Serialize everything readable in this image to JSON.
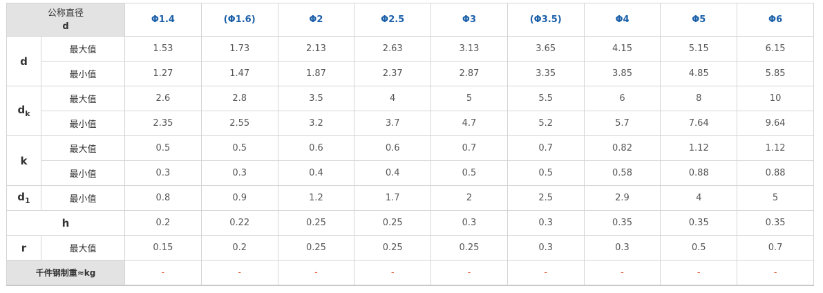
{
  "header": {
    "corner_label": "公称直径",
    "corner_symbol": "d",
    "sizes": [
      "Φ1.4",
      "(Φ1.6)",
      "Φ2",
      "Φ2.5",
      "Φ3",
      "(Φ3.5)",
      "Φ4",
      "Φ5",
      "Φ6"
    ]
  },
  "labels": {
    "max": "最大值",
    "min": "最小值"
  },
  "params": {
    "d": {
      "name": "d",
      "sub": ""
    },
    "dk": {
      "name": "d",
      "sub": "k"
    },
    "k": {
      "name": "k",
      "sub": ""
    },
    "d1": {
      "name": "d",
      "sub": "1"
    },
    "h": {
      "name": "h",
      "sub": ""
    },
    "r": {
      "name": "r",
      "sub": ""
    }
  },
  "rows": {
    "d_max": [
      "1.53",
      "1.73",
      "2.13",
      "2.63",
      "3.13",
      "3.65",
      "4.15",
      "5.15",
      "6.15"
    ],
    "d_min": [
      "1.27",
      "1.47",
      "1.87",
      "2.37",
      "2.87",
      "3.35",
      "3.85",
      "4.85",
      "5.85"
    ],
    "dk_max": [
      "2.6",
      "2.8",
      "3.5",
      "4",
      "5",
      "5.5",
      "6",
      "8",
      "10"
    ],
    "dk_min": [
      "2.35",
      "2.55",
      "3.2",
      "3.7",
      "4.7",
      "5.2",
      "5.7",
      "7.64",
      "9.64"
    ],
    "k_max": [
      "0.5",
      "0.5",
      "0.6",
      "0.6",
      "0.7",
      "0.7",
      "0.82",
      "1.12",
      "1.12"
    ],
    "k_min": [
      "0.3",
      "0.3",
      "0.4",
      "0.4",
      "0.5",
      "0.5",
      "0.58",
      "0.88",
      "0.88"
    ],
    "d1_min": [
      "0.8",
      "0.9",
      "1.2",
      "1.7",
      "2",
      "2.5",
      "2.9",
      "4",
      "5"
    ],
    "h": [
      "0.2",
      "0.22",
      "0.25",
      "0.25",
      "0.3",
      "0.3",
      "0.35",
      "0.35",
      "0.35"
    ],
    "r_max": [
      "0.15",
      "0.2",
      "0.25",
      "0.25",
      "0.25",
      "0.3",
      "0.3",
      "0.5",
      "0.7"
    ],
    "weight": [
      "-",
      "-",
      "-",
      "-",
      "-",
      "-",
      "-",
      "-",
      "-"
    ]
  },
  "weight_label": "千件钢制重≈kg",
  "colors": {
    "header_text": "#1a5fa8",
    "header_bg": "#e3e3e3",
    "dash": "#e25b3a",
    "border": "#d4d4d4"
  }
}
